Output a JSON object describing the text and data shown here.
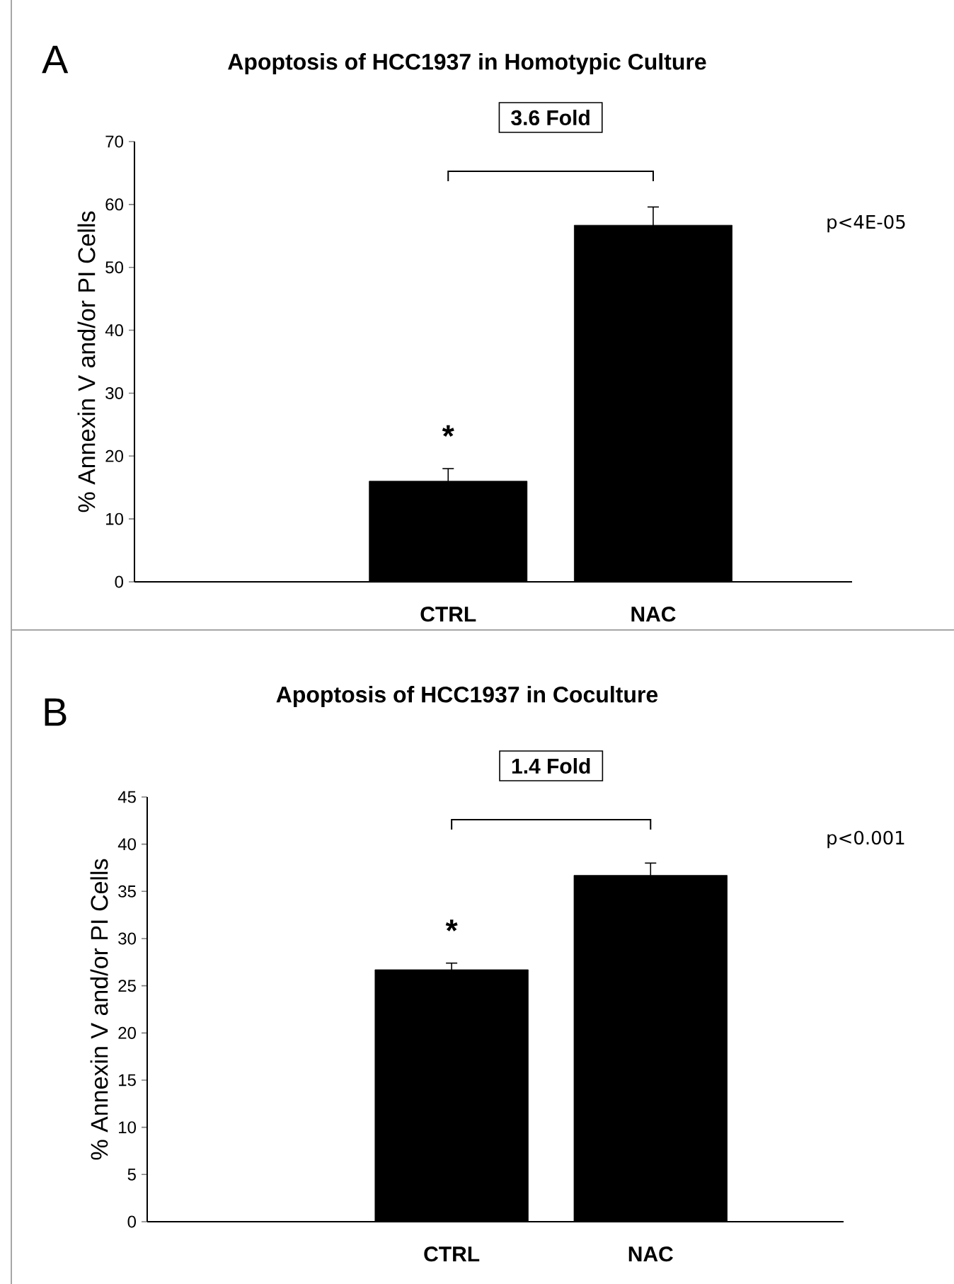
{
  "chart_data": [
    {
      "type": "bar",
      "title": "Apoptosis of HCC1937 in Homotypic Culture",
      "ylabel": "% Annexin V and/or PI Cells",
      "categories": [
        "CTRL",
        "NAC"
      ],
      "values": [
        16.0,
        56.7
      ],
      "errors": [
        2.0,
        2.9
      ],
      "color": "#000000",
      "ylim": [
        0,
        70
      ],
      "yticks": [
        0,
        10,
        20,
        30,
        40,
        50,
        60,
        70
      ],
      "annotations": [
        "A",
        "3.6 Fold",
        "*",
        "p<4E-05"
      ]
    },
    {
      "type": "bar",
      "title": "Apoptosis of HCC1937 in Coculture",
      "ylabel": "% Annexin V and/or PI Cells",
      "categories": [
        "CTRL",
        "NAC"
      ],
      "values": [
        26.7,
        36.7
      ],
      "errors": [
        0.7,
        1.3
      ],
      "color": "#000000",
      "ylim": [
        0,
        45
      ],
      "yticks": [
        0,
        5,
        10,
        15,
        20,
        25,
        30,
        35,
        40,
        45
      ],
      "annotations": [
        "B",
        "1.4 Fold",
        "*",
        "p<0.001"
      ]
    }
  ]
}
